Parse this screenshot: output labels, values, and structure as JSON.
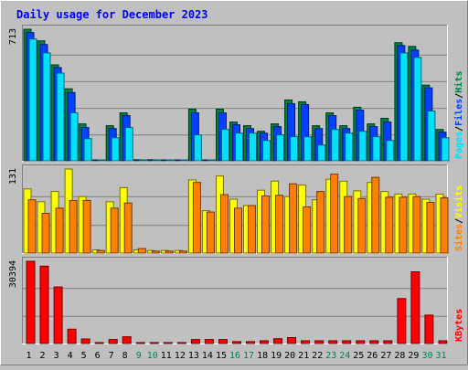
{
  "chart_data": {
    "type": "bar",
    "title": "Daily usage for December 2023",
    "categories": [
      "1",
      "2",
      "3",
      "4",
      "5",
      "6",
      "7",
      "8",
      "9",
      "10",
      "11",
      "12",
      "13",
      "14",
      "15",
      "16",
      "17",
      "18",
      "19",
      "20",
      "21",
      "22",
      "23",
      "24",
      "25",
      "26",
      "27",
      "28",
      "29",
      "30",
      "31"
    ],
    "weekend_days": [
      "9",
      "10",
      "16",
      "17",
      "23",
      "24",
      "30",
      "31"
    ],
    "panels": [
      {
        "name": "requests",
        "ymax_label": "713",
        "ymax": 713,
        "legend": [
          "Pages",
          "/",
          "Files",
          "/",
          "Hits"
        ],
        "series": [
          {
            "name": "Hits",
            "color": "#008040",
            "values": [
              713,
              650,
              520,
              390,
              200,
              3,
              190,
              260,
              6,
              6,
              3,
              3,
              280,
              3,
              280,
              210,
              190,
              160,
              200,
              330,
              320,
              190,
              260,
              190,
              290,
              200,
              230,
              640,
              620,
              410,
              170
            ]
          },
          {
            "name": "Files",
            "color": "#0040FF",
            "values": [
              695,
              630,
              505,
              370,
              180,
              3,
              175,
              245,
              5,
              5,
              3,
              3,
              260,
              3,
              260,
              195,
              175,
              150,
              185,
              310,
              305,
              175,
              245,
              175,
              275,
              185,
              210,
              625,
              600,
              395,
              155
            ]
          },
          {
            "name": "Pages",
            "color": "#00E0FF",
            "values": [
              660,
              585,
              475,
              260,
              120,
              3,
              125,
              180,
              4,
              4,
              2,
              2,
              140,
              2,
              170,
              150,
              150,
              110,
              140,
              130,
              130,
              85,
              170,
              150,
              160,
              130,
              110,
              585,
              560,
              270,
              125
            ]
          }
        ]
      },
      {
        "name": "visits",
        "ymax_label": "131",
        "ymax": 131,
        "legend": [
          "Sites",
          "/",
          "Visits"
        ],
        "series": [
          {
            "name": "Visits",
            "color": "#FFFF00",
            "values": [
              100,
              80,
              96,
              131,
              88,
              5,
              80,
              102,
              5,
              4,
              4,
              4,
              114,
              66,
              120,
              84,
              74,
              98,
              112,
              88,
              106,
              83,
              115,
              112,
              97,
              110,
              96,
              92,
              92,
              84,
              92
            ]
          },
          {
            "name": "Sites",
            "color": "#FF8000",
            "values": [
              83,
              62,
              70,
              82,
              82,
              4,
              70,
              78,
              7,
              3,
              3,
              3,
              110,
              64,
              91,
              70,
              74,
              89,
              90,
              108,
              72,
              96,
              123,
              88,
              85,
              118,
              87,
              87,
              88,
              79,
              86
            ]
          }
        ]
      },
      {
        "name": "kbytes",
        "ymax_label": "30394",
        "ymax": 30394,
        "legend": [
          "KBytes"
        ],
        "series": [
          {
            "name": "KBytes",
            "color": "#FF0000",
            "values": [
              30394,
              28600,
              20900,
              5300,
              1700,
              300,
              1500,
              2500,
              300,
              300,
              300,
              300,
              1500,
              1500,
              1500,
              700,
              700,
              1000,
              1800,
              2200,
              1000,
              1000,
              1000,
              1000,
              1000,
              1000,
              1000,
              16600,
              26500,
              10500,
              1000
            ]
          }
        ]
      }
    ],
    "colors": {
      "weekday_label": "#008000",
      "weekend_label": "#00805C",
      "title": "#0000FF",
      "plot_bg": "#C0C0C0",
      "grid": "#808080"
    }
  }
}
